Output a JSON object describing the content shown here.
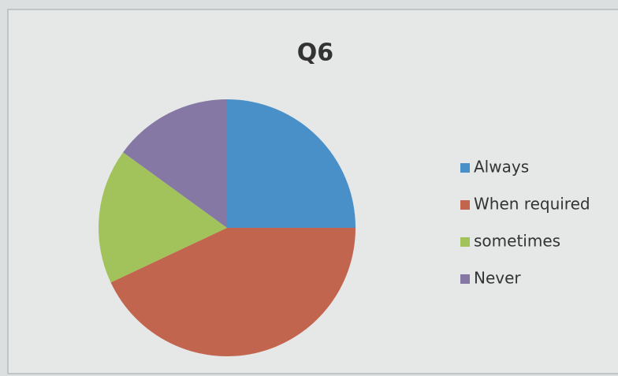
{
  "chart_data": {
    "type": "pie",
    "title": "Q6",
    "categories": [
      "Always",
      "When required",
      "sometimes",
      "Never"
    ],
    "values": [
      25,
      43,
      17,
      15
    ],
    "colors": [
      "#4a90c8",
      "#c2654e",
      "#a2c35b",
      "#8678a4"
    ],
    "legend": "right"
  }
}
